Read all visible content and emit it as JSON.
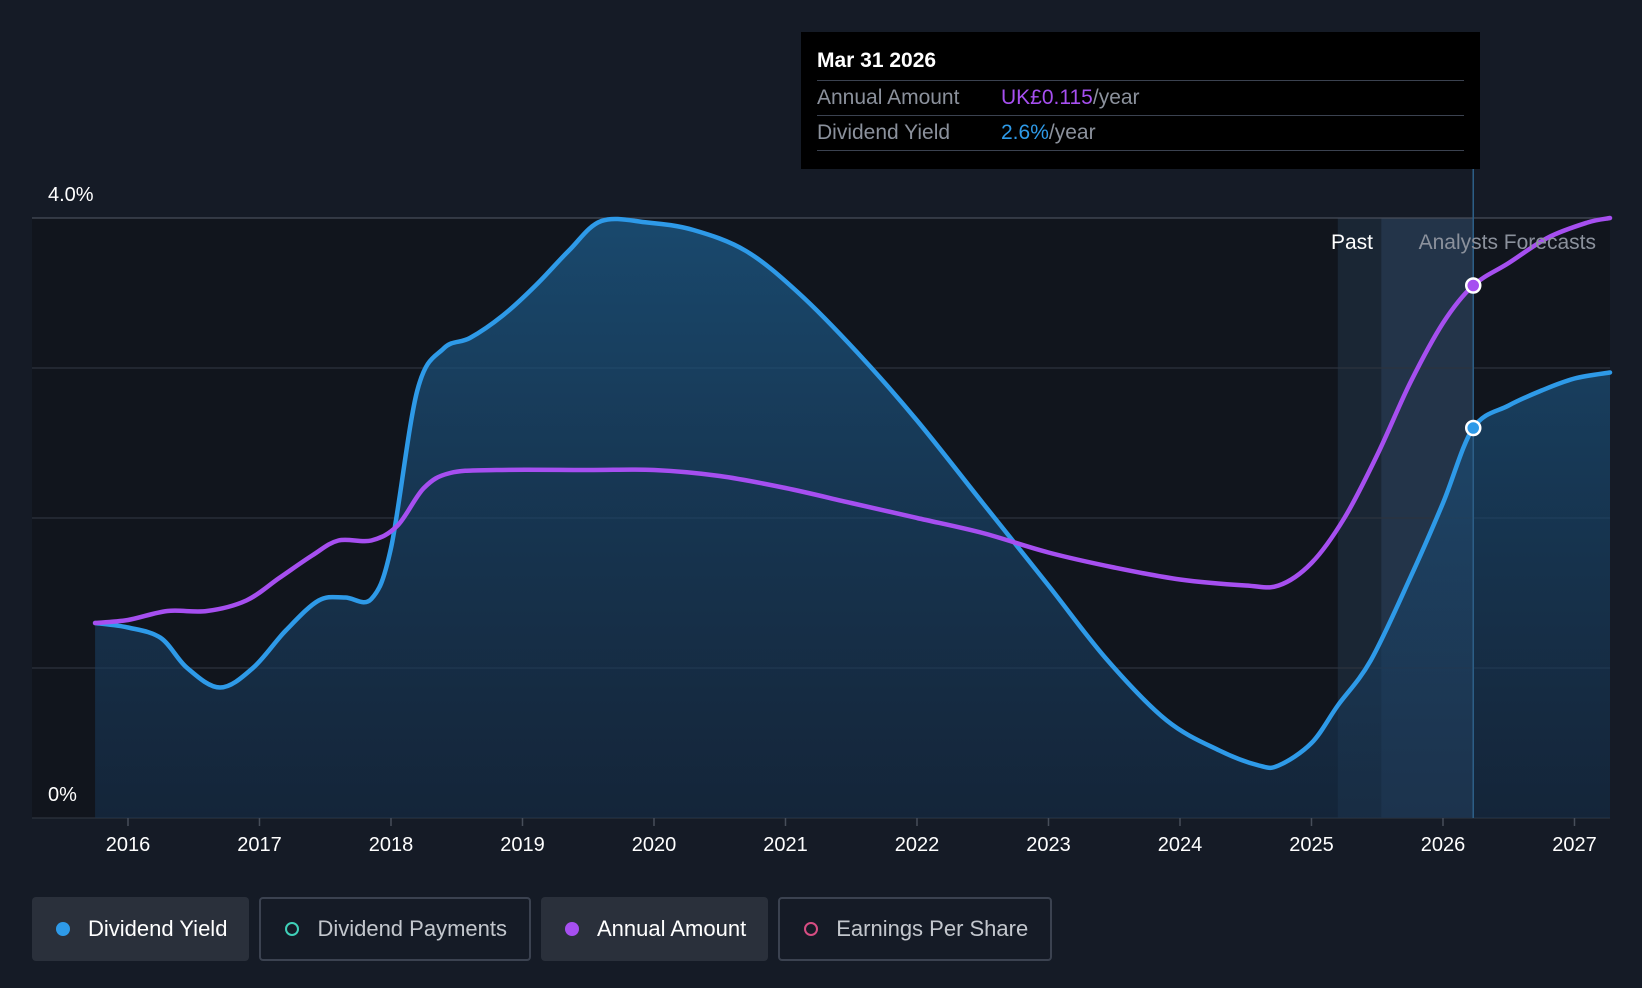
{
  "chart_data": {
    "type": "area",
    "y_ticks": [
      "4.0%",
      "0%"
    ],
    "ylim": [
      0,
      4.0
    ],
    "x_ticks": [
      "2016",
      "2017",
      "2018",
      "2019",
      "2020",
      "2021",
      "2022",
      "2023",
      "2024",
      "2025",
      "2026",
      "2027"
    ],
    "xlim": [
      2015.27,
      2027.27
    ],
    "grid": true,
    "regions": {
      "past_label": "Past",
      "forecast_label": "Analysts Forecasts",
      "past_shade_start": 2025.2,
      "forecast_start": 2025.53,
      "hover_x": 2026.23
    },
    "series": [
      {
        "name": "Dividend Yield",
        "color": "#2e9ae8",
        "unit": "percent",
        "x": [
          2015.75,
          2016.0,
          2016.25,
          2016.45,
          2016.7,
          2016.95,
          2017.2,
          2017.45,
          2017.65,
          2017.85,
          2018.0,
          2018.2,
          2018.4,
          2018.6,
          2018.85,
          2019.1,
          2019.35,
          2019.6,
          2019.95,
          2020.3,
          2020.7,
          2021.1,
          2021.55,
          2022.0,
          2022.5,
          2023.0,
          2023.45,
          2023.9,
          2024.3,
          2024.6,
          2024.75,
          2025.0,
          2025.2,
          2025.45,
          2025.75,
          2026.0,
          2026.23,
          2026.5,
          2026.75,
          2027.0,
          2027.27
        ],
        "y": [
          1.3,
          1.27,
          1.2,
          1.0,
          0.87,
          1.0,
          1.25,
          1.45,
          1.47,
          1.46,
          1.8,
          2.85,
          3.13,
          3.2,
          3.35,
          3.55,
          3.78,
          3.98,
          3.97,
          3.92,
          3.78,
          3.5,
          3.1,
          2.65,
          2.1,
          1.55,
          1.05,
          0.65,
          0.45,
          0.35,
          0.35,
          0.5,
          0.75,
          1.05,
          1.6,
          2.1,
          2.6,
          2.75,
          2.85,
          2.93,
          2.97
        ]
      },
      {
        "name": "Annual Amount",
        "color": "#a64ff0",
        "unit": "normalized",
        "x": [
          2015.75,
          2016.0,
          2016.3,
          2016.6,
          2016.9,
          2017.15,
          2017.4,
          2017.6,
          2017.85,
          2018.05,
          2018.25,
          2018.45,
          2018.8,
          2019.5,
          2020.0,
          2020.5,
          2021.0,
          2021.5,
          2022.0,
          2022.5,
          2023.0,
          2023.5,
          2024.0,
          2024.5,
          2024.75,
          2025.0,
          2025.25,
          2025.5,
          2025.75,
          2026.0,
          2026.23,
          2026.5,
          2026.8,
          2027.1,
          2027.27
        ],
        "y": [
          1.3,
          1.32,
          1.38,
          1.38,
          1.45,
          1.6,
          1.75,
          1.85,
          1.85,
          1.95,
          2.2,
          2.3,
          2.32,
          2.32,
          2.32,
          2.28,
          2.2,
          2.1,
          2.0,
          1.9,
          1.77,
          1.67,
          1.59,
          1.55,
          1.55,
          1.7,
          2.0,
          2.42,
          2.9,
          3.3,
          3.55,
          3.7,
          3.87,
          3.97,
          4.0
        ]
      }
    ],
    "hover_points": [
      {
        "series": "Annual Amount",
        "x": 2026.23,
        "y": 3.55,
        "color": "#a64ff0"
      },
      {
        "series": "Dividend Yield",
        "x": 2026.23,
        "y": 2.6,
        "color": "#2e9ae8"
      }
    ]
  },
  "tooltip": {
    "date": "Mar 31 2026",
    "rows": [
      {
        "label": "Annual Amount",
        "value": "UK£0.115",
        "unit": "/year"
      },
      {
        "label": "Dividend Yield",
        "value": "2.6%",
        "unit": "/year"
      }
    ]
  },
  "legend": [
    {
      "label": "Dividend Yield",
      "color": "#2e9ae8",
      "active": true
    },
    {
      "label": "Dividend Payments",
      "color": "#3fd0b8",
      "active": false
    },
    {
      "label": "Annual Amount",
      "color": "#a64ff0",
      "active": true
    },
    {
      "label": "Earnings Per Share",
      "color": "#d64d82",
      "active": false
    }
  ]
}
